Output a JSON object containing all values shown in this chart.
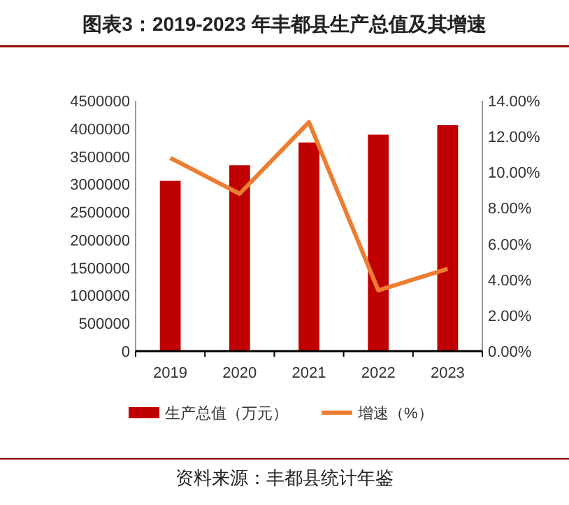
{
  "chart_data": {
    "type": "bar",
    "title": "图表3：2019-2023 年丰都县生产总值及其增速",
    "categories": [
      "2019",
      "2020",
      "2021",
      "2022",
      "2023"
    ],
    "series": [
      {
        "name": "生产总值（万元）",
        "color": "#c00000",
        "values": [
          3060000,
          3340000,
          3750000,
          3890000,
          4060000
        ]
      },
      {
        "name": "增速（%）",
        "type": "line",
        "axis": "y2",
        "color": "#ed7d31",
        "values": [
          10.8,
          8.8,
          12.8,
          3.4,
          4.6
        ]
      }
    ],
    "ylim": [
      0,
      4500000
    ],
    "yticks": [
      0,
      500000,
      1000000,
      1500000,
      2000000,
      2500000,
      3000000,
      3500000,
      4000000,
      4500000
    ],
    "y2lim": [
      0,
      14
    ],
    "y2ticks": [
      {
        "value": 0,
        "label": "0.00%"
      },
      {
        "value": 2,
        "label": "2.00%"
      },
      {
        "value": 4,
        "label": "4.00%"
      },
      {
        "value": 6,
        "label": "6.00%"
      },
      {
        "value": 8,
        "label": "8.00%"
      },
      {
        "value": 10,
        "label": "10.00%"
      },
      {
        "value": 12,
        "label": "12.00%"
      },
      {
        "value": 14,
        "label": "14.00%"
      }
    ],
    "grid": false,
    "legend": "bottom",
    "marker": "none",
    "line_style": "solid",
    "annotations": [
      "资料来源：丰都县统计年鉴"
    ]
  }
}
